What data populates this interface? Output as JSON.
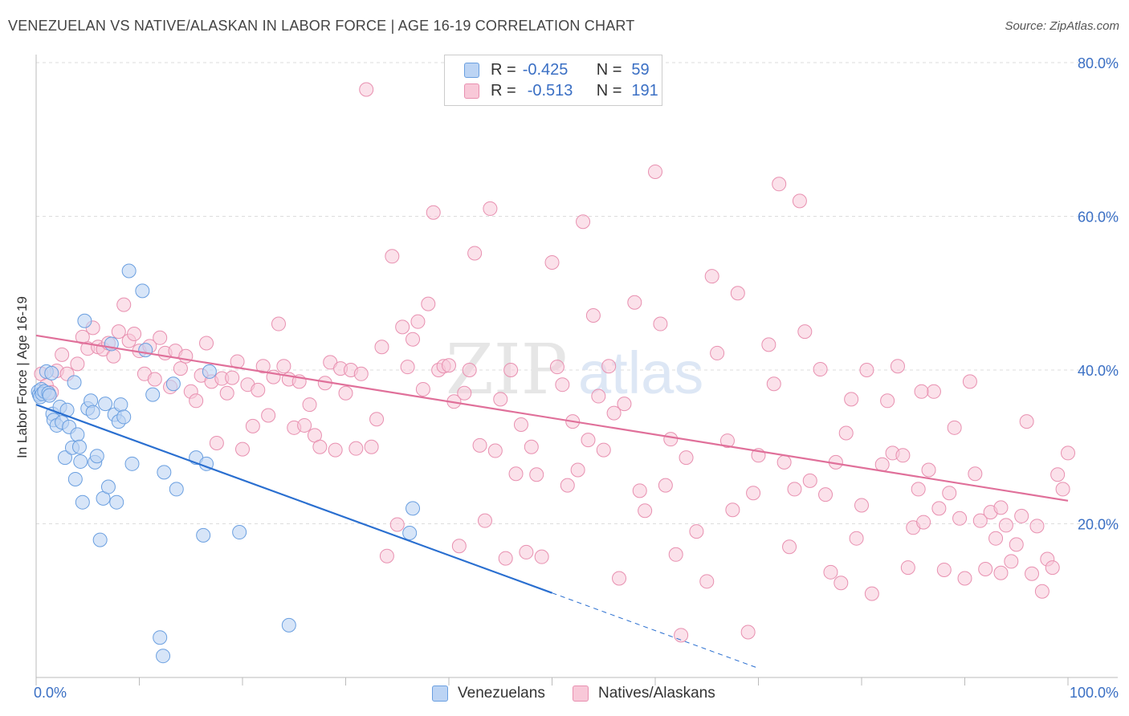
{
  "header": {
    "title": "VENEZUELAN VS NATIVE/ALASKAN IN LABOR FORCE | AGE 16-19 CORRELATION CHART",
    "source": "Source: ZipAtlas.com"
  },
  "watermark": {
    "part1": "ZIP",
    "part2": "atlas"
  },
  "legend": {
    "rows": [
      {
        "r_label": "R =",
        "r_value": "-0.425",
        "n_label": "N =",
        "n_value": "59"
      },
      {
        "r_label": "R =",
        "r_value": "-0.513",
        "n_label": "N =",
        "n_value": "191"
      }
    ]
  },
  "bottom_legend": {
    "series1": "Venezuelans",
    "series2": "Natives/Alaskans"
  },
  "axes": {
    "ylabel": "In Labor Force | Age 16-19",
    "x_min_label": "0.0%",
    "x_max_label": "100.0%",
    "y_tick_labels": [
      "20.0%",
      "40.0%",
      "60.0%",
      "80.0%"
    ]
  },
  "colors": {
    "blue": "#6a9fe0",
    "blue_fill": "#bcd4f4",
    "blue_line": "#2a6fd0",
    "pink": "#e890b0",
    "pink_fill": "#f8c8d8",
    "pink_line": "#e0709a",
    "tick_text": "#3a6fc4"
  },
  "chart_data": {
    "type": "scatter",
    "title": "VENEZUELAN VS NATIVE/ALASKAN IN LABOR FORCE | AGE 16-19 CORRELATION CHART",
    "xlabel": "",
    "ylabel": "In Labor Force | Age 16-19",
    "xlim": [
      0,
      100
    ],
    "ylim": [
      0,
      80
    ],
    "x_ticks": [
      0,
      10,
      20,
      30,
      40,
      50,
      60,
      70,
      80,
      90,
      100
    ],
    "y_ticks": [
      20,
      40,
      60,
      80
    ],
    "series": [
      {
        "name": "Venezuelans",
        "R": -0.425,
        "N": 59,
        "trend": {
          "x0": 0,
          "y0": 35.5,
          "x1": 50,
          "y1": 11.0,
          "dashed_to_x": 70,
          "dashed_to_y": 1.2
        },
        "points": [
          [
            0.2,
            37.2
          ],
          [
            0.3,
            36.8
          ],
          [
            0.4,
            36.5
          ],
          [
            0.5,
            37.5
          ],
          [
            0.6,
            36.9
          ],
          [
            0.8,
            37.2
          ],
          [
            1.0,
            39.8
          ],
          [
            1.2,
            37.0
          ],
          [
            1.3,
            36.7
          ],
          [
            1.5,
            39.6
          ],
          [
            1.6,
            34.3
          ],
          [
            1.7,
            33.5
          ],
          [
            2.0,
            32.8
          ],
          [
            2.3,
            35.2
          ],
          [
            2.5,
            33.2
          ],
          [
            2.8,
            28.6
          ],
          [
            3.0,
            34.8
          ],
          [
            3.2,
            32.6
          ],
          [
            3.5,
            29.9
          ],
          [
            3.7,
            38.4
          ],
          [
            3.8,
            25.8
          ],
          [
            4.0,
            31.6
          ],
          [
            4.2,
            30.0
          ],
          [
            4.3,
            28.1
          ],
          [
            4.5,
            22.8
          ],
          [
            4.7,
            46.4
          ],
          [
            5.0,
            35.0
          ],
          [
            5.3,
            36.0
          ],
          [
            5.5,
            34.5
          ],
          [
            5.7,
            28.0
          ],
          [
            5.9,
            28.8
          ],
          [
            6.2,
            17.9
          ],
          [
            6.5,
            23.3
          ],
          [
            6.7,
            35.6
          ],
          [
            7.0,
            24.8
          ],
          [
            7.3,
            43.4
          ],
          [
            7.6,
            34.2
          ],
          [
            7.8,
            22.8
          ],
          [
            8.0,
            33.3
          ],
          [
            8.2,
            35.5
          ],
          [
            8.5,
            33.9
          ],
          [
            9.0,
            52.9
          ],
          [
            9.3,
            27.8
          ],
          [
            10.3,
            50.3
          ],
          [
            10.6,
            42.6
          ],
          [
            11.3,
            36.8
          ],
          [
            12.0,
            5.2
          ],
          [
            12.3,
            2.8
          ],
          [
            12.4,
            26.7
          ],
          [
            13.3,
            38.2
          ],
          [
            13.6,
            24.5
          ],
          [
            15.5,
            28.6
          ],
          [
            16.2,
            18.5
          ],
          [
            16.5,
            27.8
          ],
          [
            16.8,
            39.8
          ],
          [
            19.7,
            18.9
          ],
          [
            24.5,
            6.8
          ],
          [
            36.2,
            18.8
          ],
          [
            36.5,
            22.0
          ]
        ]
      },
      {
        "name": "Natives/Alaskans",
        "R": -0.513,
        "N": 191,
        "trend": {
          "x0": 0,
          "y0": 44.5,
          "x1": 100,
          "y1": 23.0
        },
        "points": [
          [
            0.5,
            39.5
          ],
          [
            1.0,
            38.0
          ],
          [
            1.5,
            37.1
          ],
          [
            2.0,
            39.9
          ],
          [
            2.5,
            42.0
          ],
          [
            3.0,
            39.5
          ],
          [
            4.0,
            40.8
          ],
          [
            4.5,
            44.3
          ],
          [
            5.0,
            42.8
          ],
          [
            5.5,
            45.5
          ],
          [
            6.0,
            43.0
          ],
          [
            6.5,
            42.7
          ],
          [
            7.0,
            43.5
          ],
          [
            7.5,
            41.8
          ],
          [
            8.0,
            45.0
          ],
          [
            8.5,
            48.5
          ],
          [
            9.0,
            43.8
          ],
          [
            9.5,
            44.7
          ],
          [
            10.0,
            42.5
          ],
          [
            10.5,
            39.5
          ],
          [
            11.0,
            43.1
          ],
          [
            11.5,
            38.8
          ],
          [
            12.0,
            44.2
          ],
          [
            12.5,
            42.2
          ],
          [
            13.0,
            37.8
          ],
          [
            13.5,
            42.5
          ],
          [
            14.0,
            40.2
          ],
          [
            14.5,
            41.8
          ],
          [
            15.0,
            37.2
          ],
          [
            15.5,
            36.0
          ],
          [
            16.0,
            39.3
          ],
          [
            16.5,
            43.5
          ],
          [
            17.0,
            38.5
          ],
          [
            17.5,
            30.5
          ],
          [
            18.0,
            38.9
          ],
          [
            18.5,
            37.0
          ],
          [
            19.0,
            39.0
          ],
          [
            19.5,
            41.1
          ],
          [
            20.0,
            29.7
          ],
          [
            20.5,
            38.1
          ],
          [
            21.0,
            32.7
          ],
          [
            21.5,
            37.4
          ],
          [
            22.0,
            40.5
          ],
          [
            22.5,
            34.1
          ],
          [
            23.0,
            39.1
          ],
          [
            23.5,
            46.0
          ],
          [
            24.0,
            40.5
          ],
          [
            24.5,
            38.8
          ],
          [
            25.0,
            32.5
          ],
          [
            25.5,
            38.5
          ],
          [
            26.0,
            32.8
          ],
          [
            26.5,
            35.5
          ],
          [
            27.0,
            31.5
          ],
          [
            27.5,
            30.0
          ],
          [
            28.0,
            38.3
          ],
          [
            28.5,
            41.0
          ],
          [
            29.0,
            29.6
          ],
          [
            29.5,
            40.2
          ],
          [
            30.0,
            37.0
          ],
          [
            30.5,
            40.0
          ],
          [
            31.0,
            29.8
          ],
          [
            31.5,
            39.5
          ],
          [
            32.0,
            76.5
          ],
          [
            32.5,
            30.0
          ],
          [
            33.0,
            33.6
          ],
          [
            33.5,
            43.0
          ],
          [
            34.0,
            15.8
          ],
          [
            34.5,
            54.8
          ],
          [
            35.0,
            19.9
          ],
          [
            35.5,
            45.6
          ],
          [
            36.0,
            40.4
          ],
          [
            36.5,
            44.0
          ],
          [
            37.0,
            46.3
          ],
          [
            37.5,
            37.5
          ],
          [
            38.0,
            48.6
          ],
          [
            38.5,
            60.5
          ],
          [
            39.0,
            40.0
          ],
          [
            39.5,
            40.5
          ],
          [
            40.0,
            40.6
          ],
          [
            40.5,
            35.9
          ],
          [
            41.0,
            17.1
          ],
          [
            41.5,
            37.0
          ],
          [
            42.0,
            40.0
          ],
          [
            42.5,
            55.2
          ],
          [
            43.0,
            30.2
          ],
          [
            43.5,
            20.4
          ],
          [
            44.0,
            61.0
          ],
          [
            44.5,
            29.5
          ],
          [
            45.0,
            36.2
          ],
          [
            45.5,
            15.5
          ],
          [
            46.0,
            40.0
          ],
          [
            46.5,
            26.5
          ],
          [
            47.0,
            32.9
          ],
          [
            47.5,
            16.3
          ],
          [
            48.0,
            30.0
          ],
          [
            48.5,
            26.4
          ],
          [
            49.0,
            15.7
          ],
          [
            50.0,
            54.0
          ],
          [
            50.5,
            40.4
          ],
          [
            51.0,
            38.1
          ],
          [
            51.5,
            25.0
          ],
          [
            52.0,
            33.3
          ],
          [
            52.5,
            27.0
          ],
          [
            53.0,
            59.3
          ],
          [
            53.5,
            30.9
          ],
          [
            54.0,
            47.1
          ],
          [
            54.5,
            36.6
          ],
          [
            55.0,
            29.6
          ],
          [
            55.5,
            40.5
          ],
          [
            56.0,
            34.4
          ],
          [
            56.5,
            12.9
          ],
          [
            57.0,
            35.6
          ],
          [
            58.0,
            48.8
          ],
          [
            58.5,
            24.3
          ],
          [
            59.0,
            21.7
          ],
          [
            60.0,
            65.8
          ],
          [
            60.5,
            46.0
          ],
          [
            61.0,
            25.0
          ],
          [
            61.5,
            31.0
          ],
          [
            62.0,
            16.0
          ],
          [
            62.5,
            5.5
          ],
          [
            63.0,
            28.6
          ],
          [
            64.0,
            19.0
          ],
          [
            65.0,
            12.5
          ],
          [
            65.5,
            52.2
          ],
          [
            66.0,
            42.2
          ],
          [
            67.0,
            30.8
          ],
          [
            67.5,
            21.8
          ],
          [
            68.0,
            50.0
          ],
          [
            69.0,
            5.9
          ],
          [
            69.5,
            24.0
          ],
          [
            70.0,
            28.9
          ],
          [
            71.0,
            43.3
          ],
          [
            71.5,
            38.2
          ],
          [
            72.0,
            64.2
          ],
          [
            72.5,
            28.0
          ],
          [
            73.0,
            17.0
          ],
          [
            73.5,
            24.5
          ],
          [
            74.0,
            62.0
          ],
          [
            74.5,
            45.0
          ],
          [
            75.0,
            25.6
          ],
          [
            76.0,
            40.1
          ],
          [
            76.5,
            23.8
          ],
          [
            77.0,
            13.7
          ],
          [
            77.5,
            28.0
          ],
          [
            78.0,
            12.3
          ],
          [
            78.5,
            31.8
          ],
          [
            79.0,
            36.2
          ],
          [
            79.5,
            18.1
          ],
          [
            80.0,
            22.4
          ],
          [
            80.5,
            40.0
          ],
          [
            81.0,
            10.9
          ],
          [
            82.0,
            27.7
          ],
          [
            82.5,
            36.0
          ],
          [
            83.0,
            29.2
          ],
          [
            83.5,
            40.5
          ],
          [
            84.0,
            28.9
          ],
          [
            84.5,
            14.3
          ],
          [
            85.0,
            19.5
          ],
          [
            85.5,
            24.5
          ],
          [
            86.0,
            20.2
          ],
          [
            86.5,
            27.0
          ],
          [
            87.0,
            37.2
          ],
          [
            87.5,
            22.0
          ],
          [
            88.0,
            14.0
          ],
          [
            88.5,
            24.0
          ],
          [
            89.0,
            32.5
          ],
          [
            89.5,
            20.7
          ],
          [
            90.0,
            12.9
          ],
          [
            90.5,
            38.5
          ],
          [
            91.0,
            26.5
          ],
          [
            91.5,
            20.4
          ],
          [
            92.0,
            14.1
          ],
          [
            92.5,
            21.5
          ],
          [
            93.0,
            18.1
          ],
          [
            93.5,
            13.6
          ],
          [
            94.0,
            19.8
          ],
          [
            94.5,
            15.1
          ],
          [
            95.0,
            17.3
          ],
          [
            95.5,
            21.0
          ],
          [
            96.0,
            33.3
          ],
          [
            96.5,
            13.5
          ],
          [
            97.0,
            19.7
          ],
          [
            97.5,
            11.2
          ],
          [
            98.0,
            15.4
          ],
          [
            98.5,
            14.3
          ],
          [
            99.0,
            26.4
          ],
          [
            99.5,
            24.5
          ],
          [
            100.0,
            29.2
          ],
          [
            85.8,
            37.2
          ],
          [
            93.5,
            22.1
          ]
        ]
      }
    ]
  }
}
